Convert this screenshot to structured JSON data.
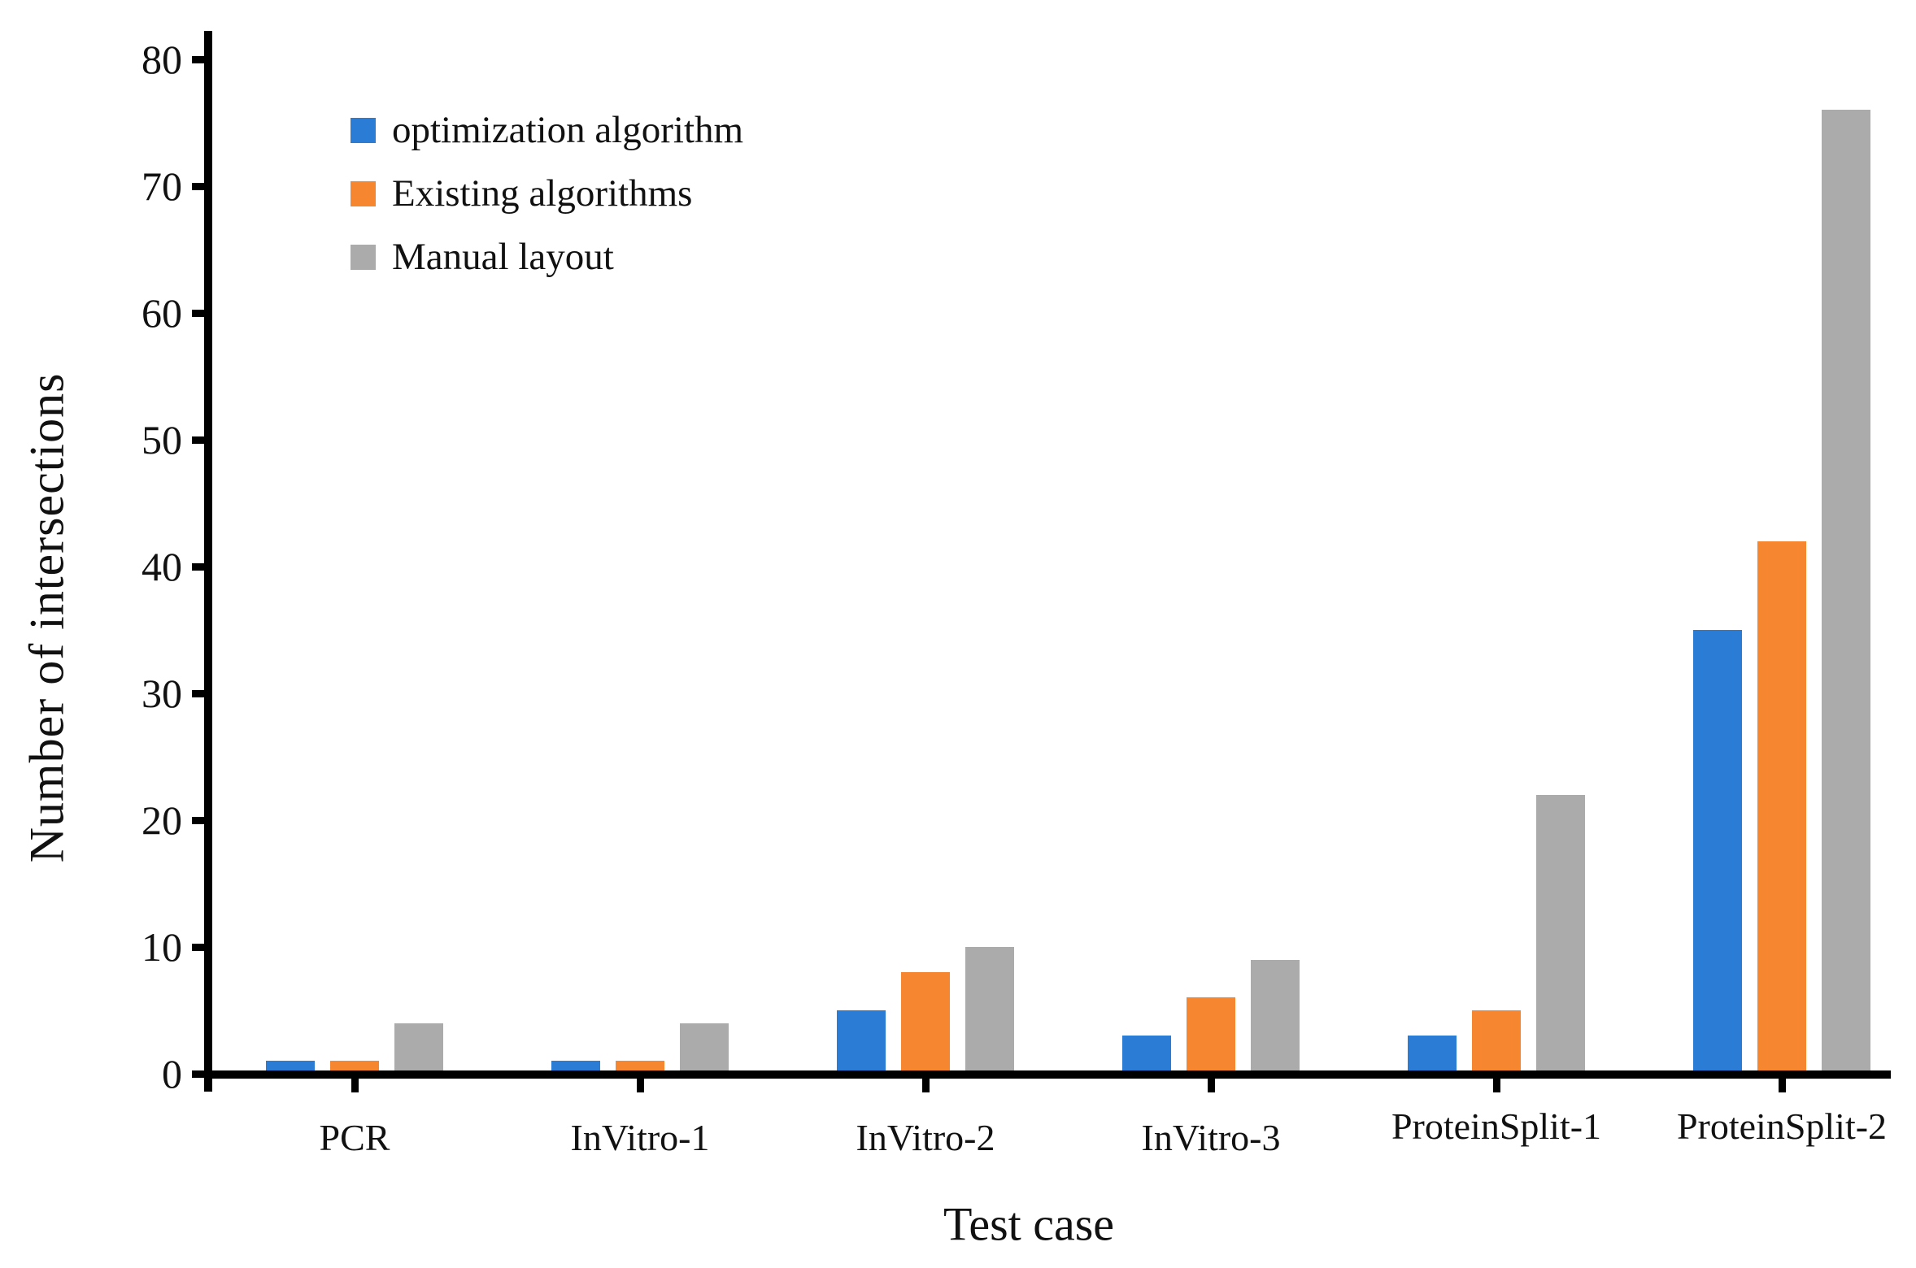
{
  "chart_data": {
    "type": "bar",
    "title": "",
    "xlabel": "Test case",
    "ylabel": "Number of intersections",
    "categories": [
      "PCR",
      "InVitro-1",
      "InVitro-2",
      "InVitro-3",
      "ProteinSplit-1",
      "ProteinSplit-2"
    ],
    "series": [
      {
        "name": "optimization algorithm",
        "color": "#2b7cd5",
        "values": [
          1,
          1,
          5,
          3,
          3,
          35
        ]
      },
      {
        "name": "Existing algorithms",
        "color": "#f6862f",
        "values": [
          1,
          1,
          8,
          6,
          5,
          42
        ]
      },
      {
        "name": "Manual layout",
        "color": "#ababab",
        "values": [
          4,
          4,
          10,
          9,
          22,
          76
        ]
      }
    ],
    "ylim": [
      0,
      80
    ],
    "yticks": [
      0,
      10,
      20,
      30,
      40,
      50,
      60,
      70,
      80
    ],
    "grid": false,
    "legend_position": "upper-left",
    "axis_color": "#000000",
    "text_color": "#111111",
    "background_color": "#ffffff"
  }
}
